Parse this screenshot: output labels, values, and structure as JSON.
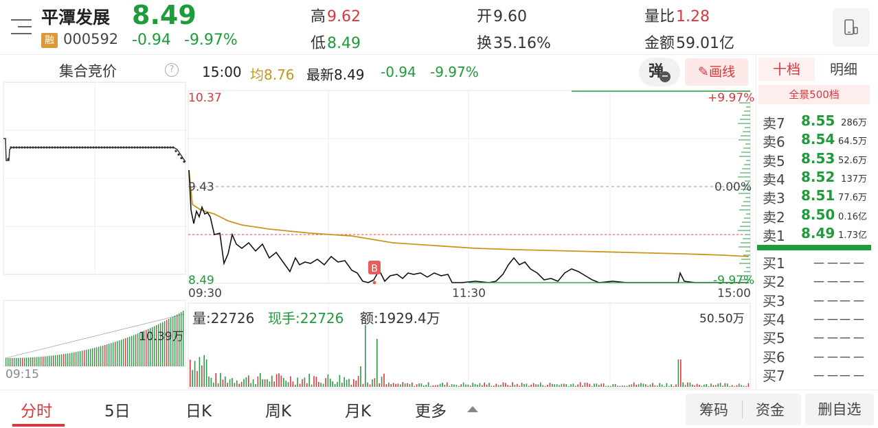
{
  "header": {
    "stock_name": "平潭发展",
    "price": "8.49",
    "badge": "融",
    "code": "000592",
    "change": "-0.94",
    "change_pct": "-9.97%",
    "high_label": "高",
    "high": "9.62",
    "low_label": "低",
    "low": "8.49",
    "open_label": "开",
    "open": "9.60",
    "turnover_label": "换",
    "turnover": "35.16%",
    "vol_ratio_label": "量比",
    "vol_ratio": "1.28",
    "amount_label": "金额",
    "amount": "59.01亿"
  },
  "left_panel": {
    "title": "集合竞价",
    "help": "?",
    "volume_label": "10.39万",
    "time_label": "09:15"
  },
  "info_bar": {
    "time": "15:00",
    "avg_label": "均",
    "avg": "8.76",
    "latest_label": "最新",
    "latest": "8.49",
    "change": "-0.94",
    "change_pct": "-9.97%",
    "tan_label": "弹",
    "tan_minus": "−",
    "draw_label": "画线"
  },
  "price_chart": {
    "y_top": "10.37",
    "y_mid": "9.43",
    "y_bottom": "8.49",
    "pct_top": "+9.97%",
    "pct_mid": "0.00%",
    "pct_bottom": "-9.97%",
    "x_start": "09:30",
    "x_mid": "11:30",
    "x_end": "15:00",
    "marker": "B"
  },
  "volume_chart": {
    "vol_label": "量:",
    "vol": "22726",
    "now_label": "现手:",
    "now": "22726",
    "amount_label": "额:",
    "amount": "1929.4万",
    "max_label": "50.50万"
  },
  "order_book": {
    "tab_ten": "十档",
    "tab_detail": "明细",
    "panorama": "全景500档",
    "sells": [
      {
        "label": "卖7",
        "price": "8.55",
        "vol": "286万"
      },
      {
        "label": "卖6",
        "price": "8.54",
        "vol": "64.5万"
      },
      {
        "label": "卖5",
        "price": "8.53",
        "vol": "52.6万"
      },
      {
        "label": "卖4",
        "price": "8.52",
        "vol": "137万"
      },
      {
        "label": "卖3",
        "price": "8.51",
        "vol": "77.6万"
      },
      {
        "label": "卖2",
        "price": "8.50",
        "vol": "0.16亿"
      },
      {
        "label": "卖1",
        "price": "8.49",
        "vol": "1.73亿"
      }
    ],
    "buys": [
      {
        "label": "买1",
        "price": "－－",
        "vol": "－－"
      },
      {
        "label": "买2",
        "price": "－－",
        "vol": "－－"
      },
      {
        "label": "买3",
        "price": "－－",
        "vol": "－－"
      },
      {
        "label": "买4",
        "price": "－－",
        "vol": "－－"
      },
      {
        "label": "买5",
        "price": "－－",
        "vol": "－－"
      },
      {
        "label": "买6",
        "price": "－－",
        "vol": "－－"
      },
      {
        "label": "买7",
        "price": "－－",
        "vol": "－－"
      }
    ]
  },
  "bottom_nav": {
    "tabs": [
      "分时",
      "5日",
      "日K",
      "周K",
      "月K",
      "更多"
    ],
    "chips": "筹码",
    "funds": "资金",
    "remove_watch": "删自选"
  },
  "colors": {
    "up": "#d9363e",
    "down": "#1e9b3b",
    "avg_line": "#c7961a"
  },
  "icons": [
    "menu-icon",
    "phone-icon",
    "help-icon",
    "pencil-icon",
    "chevron-up-icon"
  ]
}
